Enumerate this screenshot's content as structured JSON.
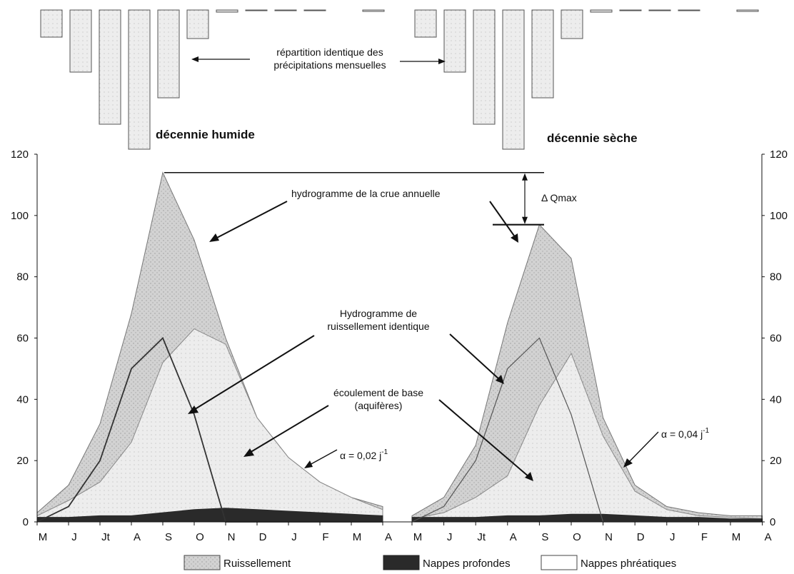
{
  "chart_data": [
    {
      "type": "bar",
      "name": "décennie humide – précipitations mensuelles",
      "title": "décennie humide",
      "orientation": "downward",
      "categories": [
        "M",
        "J",
        "Jt",
        "A",
        "S",
        "O",
        "N",
        "D",
        "J",
        "F",
        "M",
        "A"
      ],
      "values": [
        38,
        87,
        160,
        195,
        123,
        40,
        3,
        1,
        1,
        1,
        0,
        2
      ]
    },
    {
      "type": "bar",
      "name": "décennie sèche – précipitations mensuelles",
      "title": "décennie sèche",
      "orientation": "downward",
      "categories": [
        "M",
        "J",
        "Jt",
        "A",
        "S",
        "O",
        "N",
        "D",
        "J",
        "F",
        "M",
        "A"
      ],
      "values": [
        38,
        87,
        160,
        195,
        123,
        40,
        3,
        1,
        1,
        1,
        0,
        2
      ]
    },
    {
      "type": "area",
      "title": "décennie humide",
      "categories": [
        "M",
        "J",
        "Jt",
        "A",
        "S",
        "O",
        "N",
        "D",
        "J",
        "F",
        "M",
        "A"
      ],
      "ylim": [
        0,
        120
      ],
      "yticks": [
        0,
        20,
        40,
        60,
        80,
        100,
        120
      ],
      "series": [
        {
          "name": "Ruissellement",
          "values": [
            3,
            12,
            32,
            68,
            114,
            92,
            60,
            34,
            21,
            13,
            8,
            5
          ]
        },
        {
          "name": "Nappes phréatiques",
          "values": [
            2,
            7,
            13,
            26,
            52,
            63,
            58,
            34,
            21,
            13,
            8,
            4
          ]
        },
        {
          "name": "Nappes profondes",
          "values": [
            1.5,
            1.5,
            2,
            2,
            3,
            4,
            4.5,
            4,
            3.5,
            3,
            2.5,
            2
          ]
        }
      ],
      "line": {
        "name": "Hydrogramme de ruissellement",
        "values": [
          0,
          5,
          20,
          50,
          60,
          35,
          0,
          0,
          0,
          0,
          0,
          0
        ]
      }
    },
    {
      "type": "area",
      "title": "décennie sèche",
      "categories": [
        "M",
        "J",
        "Jt",
        "A",
        "S",
        "O",
        "N",
        "D",
        "J",
        "F",
        "M",
        "A"
      ],
      "ylim": [
        0,
        120
      ],
      "yticks": [
        0,
        20,
        40,
        60,
        80,
        100,
        120
      ],
      "series": [
        {
          "name": "Ruissellement",
          "values": [
            2,
            8,
            25,
            65,
            97,
            86,
            34,
            12,
            5,
            3,
            2,
            2
          ]
        },
        {
          "name": "Nappes phréatiques",
          "values": [
            1,
            3,
            8,
            15,
            38,
            55,
            28,
            10,
            4,
            2,
            1.5,
            1
          ]
        },
        {
          "name": "Nappes profondes",
          "values": [
            1.5,
            1.5,
            1.5,
            2,
            2,
            2.5,
            2.5,
            2,
            1.5,
            1.5,
            1,
            1
          ]
        }
      ],
      "line": {
        "name": "Hydrogramme de ruissellement",
        "values": [
          0,
          5,
          20,
          50,
          60,
          35,
          0,
          0,
          0,
          0,
          0,
          0
        ]
      }
    }
  ],
  "labels": {
    "wet_decade": "décennie humide",
    "dry_decade": "décennie sèche",
    "precip_line1": "répartition identique des",
    "precip_line2": "précipitations mensuelles",
    "delta_q": "Δ Qmax",
    "hydro_annual": "hydrogramme de la crue annuelle",
    "hydro_runoff_line1": "Hydrogramme de",
    "hydro_runoff_line2": "ruissellement identique",
    "base_flow_line1": "écoulement de base",
    "base_flow_line2": "(aquifères)",
    "alpha_wet": "α = 0,02 j",
    "alpha_dry": "α = 0,04 j",
    "alpha_exp": "-1"
  },
  "legend": [
    {
      "label": "Ruissellement",
      "swatch": "light"
    },
    {
      "label": "Nappes profondes",
      "swatch": "dark"
    },
    {
      "label": "Nappes phréatiques",
      "swatch": "white"
    }
  ],
  "colors": {
    "runoff": "#cfcfcf",
    "phreatic": "#e9e9e9",
    "deep": "#2a2a2a",
    "line": "#444444",
    "bar_fill": "#e2e2e2",
    "bar_stroke": "#555555"
  }
}
